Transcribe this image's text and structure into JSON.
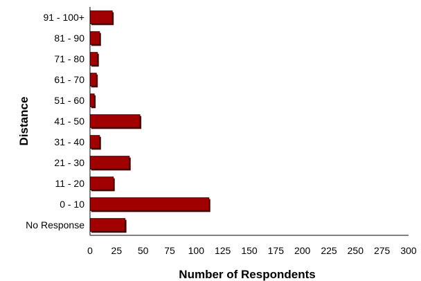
{
  "chart_data": {
    "type": "bar",
    "orientation": "horizontal",
    "categories": [
      "No Response",
      "0 - 10",
      "11 - 20",
      "21 - 30",
      "31 - 40",
      "41 - 50",
      "51 - 60",
      "61 - 70",
      "71 - 80",
      "81 - 90",
      "91 - 100+"
    ],
    "values": [
      33,
      112,
      22,
      37,
      9,
      47,
      4,
      6,
      7,
      9,
      21
    ],
    "xlabel": "Number of Respondents",
    "ylabel": "Distance",
    "xlim": [
      0,
      300
    ],
    "xticks": [
      0,
      25,
      50,
      75,
      100,
      125,
      150,
      175,
      200,
      225,
      250,
      275,
      300
    ],
    "grid": false,
    "legend": "none",
    "bar_color": "#a00000",
    "bar_shadow_color": "#5a0000"
  }
}
